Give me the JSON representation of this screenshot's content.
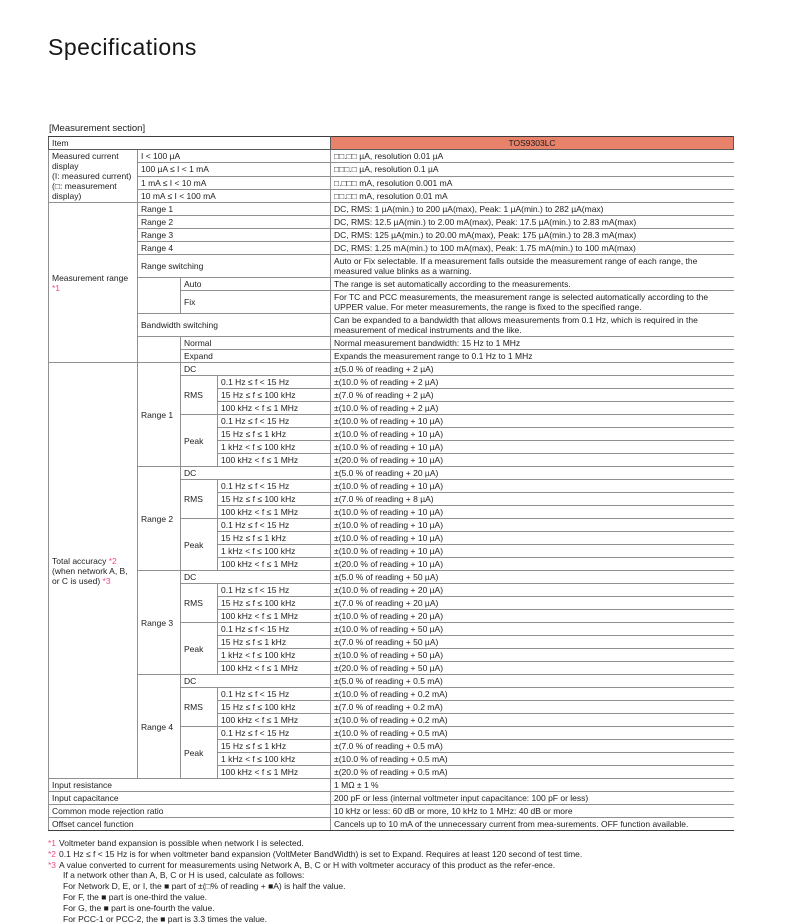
{
  "page": {
    "title": "Specifications",
    "section_label": "[Measurement section]"
  },
  "colors": {
    "header_bg": "#E8826B",
    "footnote_accent": "#F04A8E",
    "border": "#909090",
    "section_border": "#3d3d3d"
  },
  "table": {
    "header": {
      "item": "Item",
      "product": "TOS9303LC"
    },
    "rows": [
      {
        "cells": [
          {
            "t": "Measured current\ndisplay\n(I: measured current)\n(□: measurement\ndisplay)",
            "rs": 4,
            "c": "c1 top"
          },
          {
            "t": "I < 100 µA",
            "cs": 3
          },
          {
            "t": "□□.□□ µA, resolution 0.01 µA"
          }
        ]
      },
      {
        "cells": [
          {
            "t": "100 µA ≤ I < 1 mA",
            "cs": 3
          },
          {
            "t": "□□□.□ µA, resolution 0.1 µA"
          }
        ]
      },
      {
        "cells": [
          {
            "t": "1 mA ≤ I < 10 mA",
            "cs": 3
          },
          {
            "t": "□.□□□ mA, resolution 0.001 mA"
          }
        ]
      },
      {
        "cells": [
          {
            "t": "10 mA ≤ I < 100 mA",
            "cs": 3
          },
          {
            "t": "□□.□□ mA, resolution 0.01 mA"
          }
        ]
      },
      {
        "sec": true,
        "cells": [
          {
            "t": "Measurement range\n*1",
            "rs": 10,
            "c": "c1"
          },
          {
            "t": "Range 1",
            "cs": 3
          },
          {
            "t": "DC, RMS: 1 µA(min.) to 200 µA(max), Peak: 1 µA(min.) to 282 µA(max)"
          }
        ]
      },
      {
        "cells": [
          {
            "t": "Range 2",
            "cs": 3
          },
          {
            "t": "DC, RMS: 12.5 µA(min.) to 2.00 mA(max), Peak: 17.5 µA(min.) to 2.83 mA(max)"
          }
        ]
      },
      {
        "cells": [
          {
            "t": "Range 3",
            "cs": 3
          },
          {
            "t": "DC, RMS: 125 µA(min.) to 20.00 mA(max), Peak: 175 µA(min.) to 28.3 mA(max)"
          }
        ]
      },
      {
        "cells": [
          {
            "t": "Range 4",
            "cs": 3
          },
          {
            "t": "DC, RMS: 1.25 mA(min.) to 100 mA(max), Peak: 1.75 mA(min.) to 100 mA(max)"
          }
        ]
      },
      {
        "cells": [
          {
            "t": "Range switching",
            "cs": 3
          },
          {
            "t": "Auto or Fix selectable. If a measurement falls outside the measurement range of each range, the measured value blinks as a warning."
          }
        ]
      },
      {
        "cells": [
          {
            "t": "",
            "rs": 2
          },
          {
            "t": "Auto",
            "cs": 2
          },
          {
            "t": "The range is set automatically according to the measurements."
          }
        ]
      },
      {
        "cells": [
          {
            "t": "Fix",
            "cs": 2
          },
          {
            "t": "For TC and PCC measurements, the measurement range is selected automatically according to the UPPER value. For meter measurements, the range is fixed to the specified range."
          }
        ]
      },
      {
        "cells": [
          {
            "t": "Bandwidth switching",
            "cs": 3
          },
          {
            "t": "Can be expanded to a bandwidth that allows measurements from 0.1 Hz, which is required in the measurement of medical instruments and the like."
          }
        ]
      },
      {
        "cells": [
          {
            "t": "",
            "rs": 2
          },
          {
            "t": "Normal",
            "cs": 2
          },
          {
            "t": "Normal measurement bandwidth: 15 Hz to 1 MHz"
          }
        ]
      },
      {
        "cells": [
          {
            "t": "Expand",
            "cs": 2
          },
          {
            "t": "Expands the measurement range to 0.1 Hz to 1 MHz"
          }
        ]
      },
      {
        "sec": true,
        "cells": [
          {
            "t": "Total accuracy *2\n(when network A, B,\nor C is used) *3",
            "rs": 32,
            "c": "c1"
          },
          {
            "t": "Range 1",
            "rs": 8
          },
          {
            "t": "DC",
            "cs": 2
          },
          {
            "t": "±(5.0 % of reading + 2 µA)"
          }
        ]
      },
      {
        "cells": [
          {
            "t": "RMS",
            "rs": 3
          },
          {
            "t": "0.1 Hz ≤ f < 15 Hz"
          },
          {
            "t": "±(10.0 % of reading + 2 µA)"
          }
        ]
      },
      {
        "cells": [
          {
            "t": "15 Hz ≤ f ≤ 100 kHz"
          },
          {
            "t": "±(7.0 % of reading + 2 µA)"
          }
        ]
      },
      {
        "cells": [
          {
            "t": "100 kHz < f ≤ 1 MHz"
          },
          {
            "t": "±(10.0 % of reading + 2 µA)"
          }
        ]
      },
      {
        "cells": [
          {
            "t": "Peak",
            "rs": 4
          },
          {
            "t": "0.1 Hz ≤ f < 15 Hz"
          },
          {
            "t": "±(10.0 % of reading + 10 µA)"
          }
        ]
      },
      {
        "cells": [
          {
            "t": "15 Hz ≤ f ≤ 1 kHz"
          },
          {
            "t": "±(10.0 % of reading + 10 µA)"
          }
        ]
      },
      {
        "cells": [
          {
            "t": "1 kHz < f ≤ 100 kHz"
          },
          {
            "t": "±(10.0 % of reading + 10 µA)"
          }
        ]
      },
      {
        "cells": [
          {
            "t": "100 kHz < f ≤ 1 MHz"
          },
          {
            "t": "±(20.0 % of reading + 10 µA)"
          }
        ]
      },
      {
        "cells": [
          {
            "t": "Range 2",
            "rs": 8
          },
          {
            "t": "DC",
            "cs": 2
          },
          {
            "t": "±(5.0 % of reading + 20 µA)"
          }
        ]
      },
      {
        "cells": [
          {
            "t": "RMS",
            "rs": 3
          },
          {
            "t": "0.1 Hz ≤ f < 15 Hz"
          },
          {
            "t": "±(10.0 % of reading + 10 µA)"
          }
        ]
      },
      {
        "cells": [
          {
            "t": "15 Hz ≤ f ≤ 100 kHz"
          },
          {
            "t": "±(7.0 % of reading + 8 µA)"
          }
        ]
      },
      {
        "cells": [
          {
            "t": "100 kHz < f ≤ 1 MHz"
          },
          {
            "t": "±(10.0 % of reading + 10 µA)"
          }
        ]
      },
      {
        "cells": [
          {
            "t": "Peak",
            "rs": 4
          },
          {
            "t": "0.1 Hz ≤ f < 15 Hz"
          },
          {
            "t": "±(10.0 % of reading + 10 µA)"
          }
        ]
      },
      {
        "cells": [
          {
            "t": "15 Hz ≤ f ≤ 1 kHz"
          },
          {
            "t": "±(10.0 % of reading + 10 µA)"
          }
        ]
      },
      {
        "cells": [
          {
            "t": "1 kHz < f ≤ 100 kHz"
          },
          {
            "t": "±(10.0 % of reading + 10 µA)"
          }
        ]
      },
      {
        "cells": [
          {
            "t": "100 kHz < f ≤ 1 MHz"
          },
          {
            "t": "±(20.0 % of reading + 10 µA)"
          }
        ]
      },
      {
        "cells": [
          {
            "t": "Range 3",
            "rs": 8
          },
          {
            "t": "DC",
            "cs": 2
          },
          {
            "t": "±(5.0 % of reading + 50 µA)"
          }
        ]
      },
      {
        "cells": [
          {
            "t": "RMS",
            "rs": 3
          },
          {
            "t": "0.1 Hz ≤ f < 15 Hz"
          },
          {
            "t": "±(10.0 % of reading + 20 µA)"
          }
        ]
      },
      {
        "cells": [
          {
            "t": "15 Hz ≤ f ≤ 100 kHz"
          },
          {
            "t": "±(7.0 % of reading + 20 µA)"
          }
        ]
      },
      {
        "cells": [
          {
            "t": "100 kHz < f ≤ 1 MHz"
          },
          {
            "t": "±(10.0 % of reading + 20 µA)"
          }
        ]
      },
      {
        "cells": [
          {
            "t": "Peak",
            "rs": 4
          },
          {
            "t": "0.1 Hz ≤ f < 15 Hz"
          },
          {
            "t": "±(10.0 % of reading + 50 µA)"
          }
        ]
      },
      {
        "cells": [
          {
            "t": "15 Hz ≤ f ≤ 1 kHz"
          },
          {
            "t": "±(7.0 % of reading + 50 µA)"
          }
        ]
      },
      {
        "cells": [
          {
            "t": "1 kHz < f ≤ 100 kHz"
          },
          {
            "t": "±(10.0 % of reading + 50 µA)"
          }
        ]
      },
      {
        "cells": [
          {
            "t": "100 kHz < f ≤ 1 MHz"
          },
          {
            "t": "±(20.0 % of reading + 50 µA)"
          }
        ]
      },
      {
        "cells": [
          {
            "t": "Range 4",
            "rs": 8
          },
          {
            "t": "DC",
            "cs": 2
          },
          {
            "t": "±(5.0 % of reading + 0.5 mA)"
          }
        ]
      },
      {
        "cells": [
          {
            "t": "RMS",
            "rs": 3
          },
          {
            "t": "0.1 Hz ≤ f < 15 Hz"
          },
          {
            "t": "±(10.0 % of reading + 0.2 mA)"
          }
        ]
      },
      {
        "cells": [
          {
            "t": "15 Hz ≤ f ≤ 100 kHz"
          },
          {
            "t": "±(7.0 % of reading + 0.2 mA)"
          }
        ]
      },
      {
        "cells": [
          {
            "t": "100 kHz < f ≤ 1 MHz"
          },
          {
            "t": "±(10.0 % of reading + 0.2 mA)"
          }
        ]
      },
      {
        "cells": [
          {
            "t": "Peak",
            "rs": 4
          },
          {
            "t": "0.1 Hz ≤ f < 15 Hz"
          },
          {
            "t": "±(10.0 % of reading + 0.5 mA)"
          }
        ]
      },
      {
        "cells": [
          {
            "t": "15 Hz ≤ f ≤ 1 kHz"
          },
          {
            "t": "±(7.0 % of reading + 0.5 mA)"
          }
        ]
      },
      {
        "cells": [
          {
            "t": "1 kHz < f ≤ 100 kHz"
          },
          {
            "t": "±(10.0 % of reading + 0.5 mA)"
          }
        ]
      },
      {
        "cells": [
          {
            "t": "100 kHz < f ≤ 1 MHz"
          },
          {
            "t": "±(20.0 % of reading + 0.5 mA)"
          }
        ]
      },
      {
        "sec": true,
        "cells": [
          {
            "t": "Input resistance",
            "cs": 4
          },
          {
            "t": "1 MΩ ± 1 %"
          }
        ]
      },
      {
        "cells": [
          {
            "t": "Input capacitance",
            "cs": 4
          },
          {
            "t": "200 pF or less (internal voltmeter input capacitance: 100 pF or less)"
          }
        ]
      },
      {
        "cells": [
          {
            "t": "Common mode rejection ratio",
            "cs": 4
          },
          {
            "t": "10 kHz or less: 60 dB or more, 10 kHz to 1 MHz: 40 dB or more"
          }
        ]
      },
      {
        "cells": [
          {
            "t": "Offset cancel function",
            "cs": 4
          },
          {
            "t": "Cancels up to 10 mA of the unnecessary current from mea-surements. OFF function available."
          }
        ]
      }
    ]
  },
  "footnotes": [
    {
      "marker": "*1",
      "lines": [
        "Voltmeter band expansion is possible when network I is selected."
      ]
    },
    {
      "marker": "*2",
      "lines": [
        "0.1 Hz ≤ f < 15 Hz is for when voltmeter band expansion (VoltMeter BandWidth) is set to Expand. Requires at least 120 second of test time."
      ]
    },
    {
      "marker": "*3",
      "lines": [
        "A value converted to current for measurements using Network A, B, C or H with voltmeter accuracy of this product as the refer-ence.",
        "If a network other than A, B, C or H is used, calculate as follows:",
        "For Network D, E, or I, the ■ part of ±(□% of reading + ■A) is half the value.",
        "For F, the ■ part is one-third the value.",
        "For G, the ■ part is one-fourth the value.",
        "For PCC-1 or PCC-2, the ■ part is 3.3 times the value."
      ]
    }
  ]
}
